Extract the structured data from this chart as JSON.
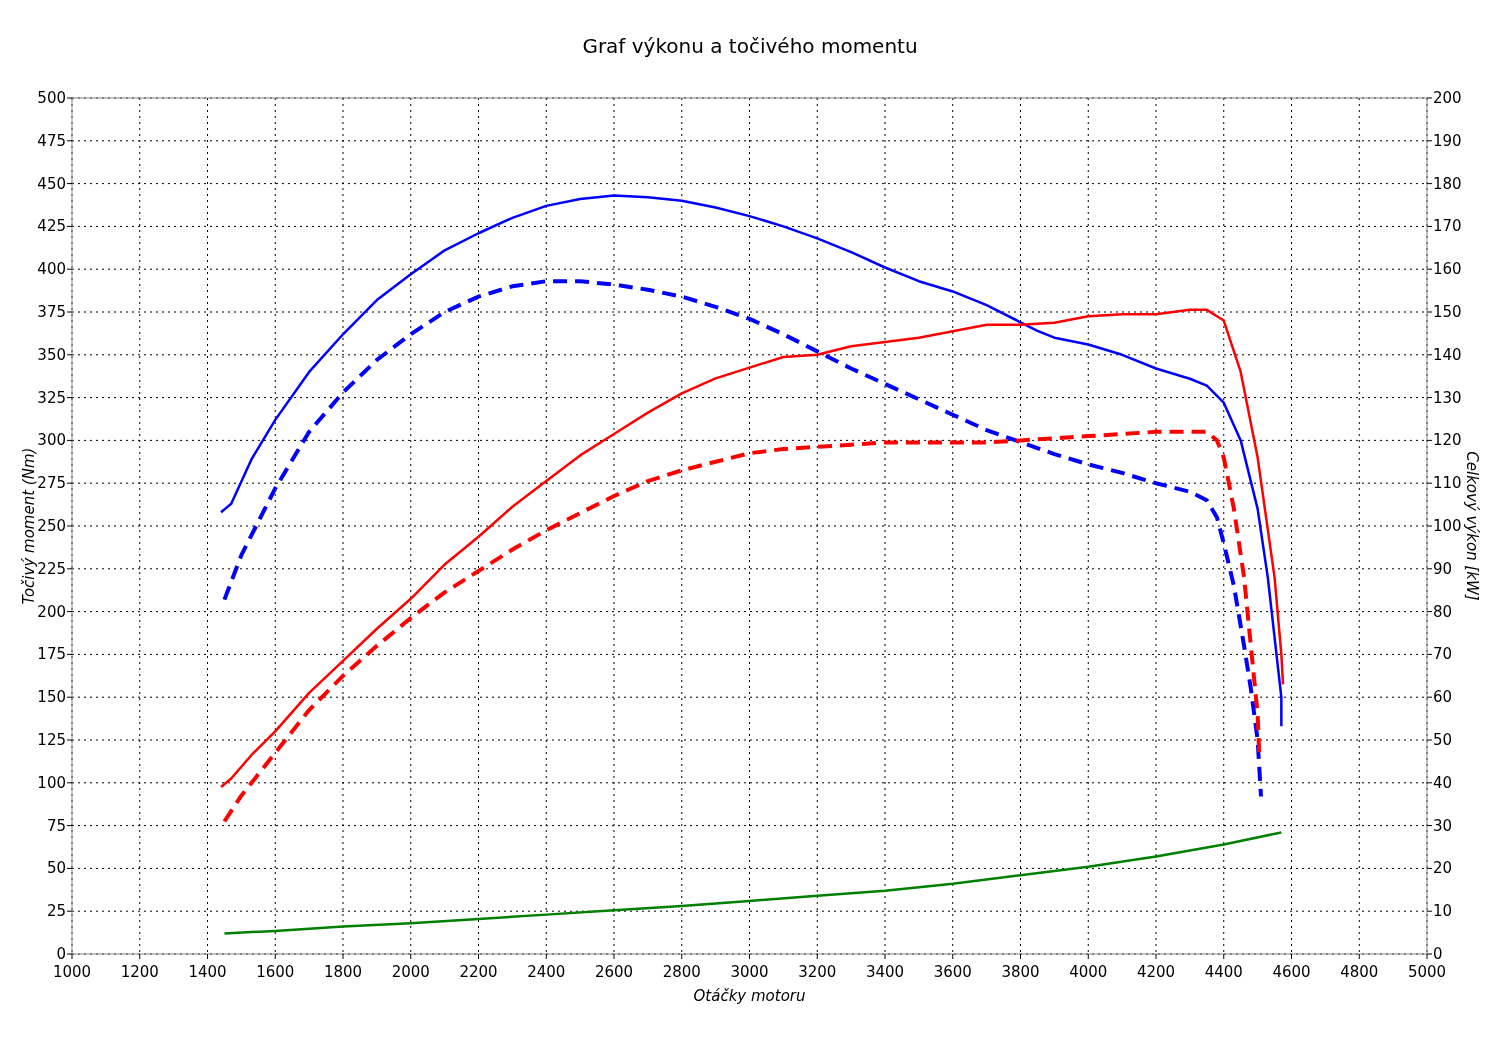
{
  "chart_data": {
    "type": "line",
    "title": "Graf výkonu a točivého momentu",
    "xlabel": "Otáčky motoru",
    "ylabel": "Točivý moment (Nm)",
    "y2label": "Celkový výkon [kW]",
    "xlim": [
      1000,
      5000
    ],
    "xticks": [
      1000,
      1200,
      1400,
      1600,
      1800,
      2000,
      2200,
      2400,
      2600,
      2800,
      3000,
      3200,
      3400,
      3600,
      3800,
      4000,
      4200,
      4400,
      4600,
      4800,
      5000
    ],
    "ylim": [
      0,
      500
    ],
    "yticks": [
      0,
      25,
      50,
      75,
      100,
      125,
      150,
      175,
      200,
      225,
      250,
      275,
      300,
      325,
      350,
      375,
      400,
      425,
      450,
      475,
      500
    ],
    "y2lim": [
      0,
      200
    ],
    "y2ticks": [
      0,
      10,
      20,
      30,
      40,
      50,
      60,
      70,
      80,
      90,
      100,
      110,
      120,
      130,
      140,
      150,
      160,
      170,
      180,
      190,
      200
    ],
    "grid": true,
    "series": [
      {
        "color": "#0000ff",
        "line_style": "solid",
        "x": [
          1440,
          1470,
          1530,
          1600,
          1700,
          1800,
          1900,
          2000,
          2100,
          2200,
          2300,
          2400,
          2500,
          2600,
          2700,
          2800,
          2900,
          3000,
          3100,
          3200,
          3300,
          3400,
          3500,
          3600,
          3700,
          3800,
          3850,
          3900,
          4000,
          4100,
          4200,
          4300,
          4350,
          4400,
          4450,
          4500,
          4530,
          4550,
          4570,
          4570
        ],
        "values": [
          258,
          263,
          289,
          312,
          340,
          362,
          382,
          397,
          411,
          421,
          430,
          437,
          441,
          443,
          442,
          440,
          436,
          431,
          425,
          418,
          410,
          401,
          393,
          387,
          379,
          369,
          364,
          360,
          356,
          350,
          342,
          336,
          332,
          322,
          300,
          260,
          220,
          185,
          150,
          133
        ]
      },
      {
        "color": "#0000ff",
        "line_style": "dashed",
        "x": [
          1450,
          1500,
          1600,
          1700,
          1800,
          1900,
          2000,
          2100,
          2200,
          2300,
          2400,
          2500,
          2600,
          2700,
          2800,
          2900,
          3000,
          3100,
          3200,
          3300,
          3400,
          3500,
          3600,
          3700,
          3800,
          3900,
          4000,
          4100,
          4200,
          4300,
          4350,
          4380,
          4400,
          4430,
          4460,
          4480,
          4500,
          4510
        ],
        "values": [
          207,
          233,
          272,
          305,
          328,
          347,
          362,
          375,
          384,
          390,
          393,
          393,
          391,
          388,
          384,
          378,
          371,
          362,
          352,
          342,
          333,
          324,
          315,
          306,
          299,
          292,
          286,
          281,
          275,
          270,
          265,
          255,
          240,
          215,
          180,
          155,
          125,
          92
        ]
      },
      {
        "color": "#ff0000",
        "line_style": "solid",
        "axis": "y2",
        "x": [
          1440,
          1470,
          1530,
          1600,
          1700,
          1800,
          1900,
          2000,
          2100,
          2200,
          2300,
          2400,
          2500,
          2600,
          2700,
          2800,
          2900,
          3000,
          3100,
          3200,
          3300,
          3400,
          3500,
          3600,
          3700,
          3800,
          3900,
          4000,
          4100,
          4200,
          4300,
          4350,
          4400,
          4450,
          4500,
          4550,
          4570,
          4575
        ],
        "values": [
          39,
          41,
          46.5,
          52,
          61,
          68.5,
          76,
          83,
          91,
          97.5,
          104.5,
          110.5,
          116.5,
          121.5,
          126.5,
          131,
          134.5,
          137,
          139.5,
          140,
          142,
          143,
          144,
          145.5,
          147,
          147,
          147.5,
          149,
          149.5,
          149.5,
          150.5,
          150.5,
          148,
          136,
          116,
          88,
          70,
          63
        ]
      },
      {
        "color": "#ff0000",
        "line_style": "dashed",
        "axis": "y2",
        "x": [
          1450,
          1500,
          1600,
          1700,
          1800,
          1900,
          2000,
          2100,
          2200,
          2300,
          2400,
          2500,
          2600,
          2700,
          2800,
          2900,
          3000,
          3100,
          3200,
          3300,
          3400,
          3500,
          3600,
          3700,
          3800,
          3900,
          4000,
          4100,
          4200,
          4300,
          4350,
          4380,
          4400,
          4430,
          4460,
          4480,
          4500,
          4505
        ],
        "values": [
          31,
          37,
          47,
          57,
          65,
          72,
          78.5,
          84.5,
          89.5,
          94.5,
          99,
          103,
          107,
          110.5,
          113,
          115,
          117,
          118,
          118.5,
          119,
          119.5,
          119.5,
          119.5,
          119.5,
          120,
          120.5,
          121,
          121.5,
          122,
          122,
          122,
          120,
          116,
          104,
          88,
          72,
          56,
          46
        ]
      },
      {
        "color": "#008000",
        "line_style": "solid",
        "axis": "y2",
        "x": [
          1450,
          1600,
          1800,
          2000,
          2200,
          2400,
          2600,
          2800,
          3000,
          3200,
          3400,
          3600,
          3800,
          4000,
          4200,
          4400,
          4570
        ],
        "values": [
          4.8,
          5.4,
          6.4,
          7.2,
          8.2,
          9.2,
          10.2,
          11.2,
          12.4,
          13.6,
          14.8,
          16.4,
          18.4,
          20.4,
          22.8,
          25.6,
          28.4
        ]
      }
    ]
  }
}
